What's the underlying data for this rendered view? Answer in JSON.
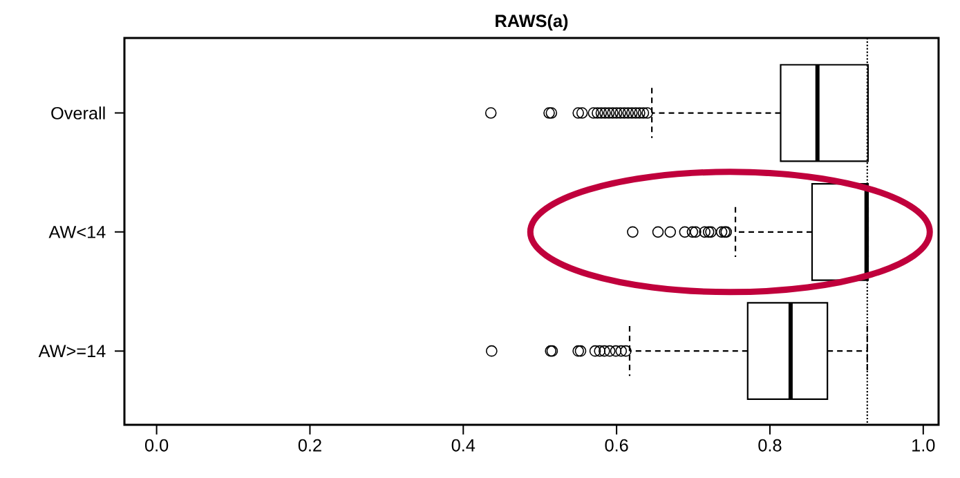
{
  "chart_data": {
    "type": "box",
    "orientation": "horizontal",
    "title": "RAWS(a)",
    "categories": [
      "Overall",
      "AW<14",
      "AW>=14"
    ],
    "boxes": [
      {
        "low": 0.646,
        "q1": 0.814,
        "median": 0.862,
        "q3": 0.928,
        "high": 0.928,
        "outliers": [
          0.436,
          0.512,
          0.515,
          0.55,
          0.555,
          0.57,
          0.575,
          0.58,
          0.585,
          0.59,
          0.595,
          0.6,
          0.605,
          0.61,
          0.615,
          0.62,
          0.625,
          0.63,
          0.635,
          0.64
        ]
      },
      {
        "low": 0.755,
        "q1": 0.855,
        "median": 0.926,
        "q3": 0.928,
        "high": 0.928,
        "outliers": [
          0.621,
          0.654,
          0.67,
          0.689,
          0.699,
          0.703,
          0.715,
          0.72,
          0.723,
          0.737,
          0.741,
          0.743
        ]
      },
      {
        "low": 0.617,
        "q1": 0.771,
        "median": 0.827,
        "q3": 0.875,
        "high": 0.927,
        "outliers": [
          0.437,
          0.514,
          0.516,
          0.55,
          0.553,
          0.572,
          0.578,
          0.584,
          0.591,
          0.599,
          0.606,
          0.612
        ]
      }
    ],
    "xlim": [
      -0.042,
      1.02
    ],
    "xticks": [
      {
        "value": 0,
        "label": "0.0"
      },
      0.2,
      0.4,
      0.6,
      0.8,
      {
        "value": 1,
        "label": "1.0"
      }
    ],
    "ref_lines": [
      {
        "axis": "x",
        "value": 0.927,
        "line_style": "dotted"
      }
    ],
    "marker": "circle"
  }
}
